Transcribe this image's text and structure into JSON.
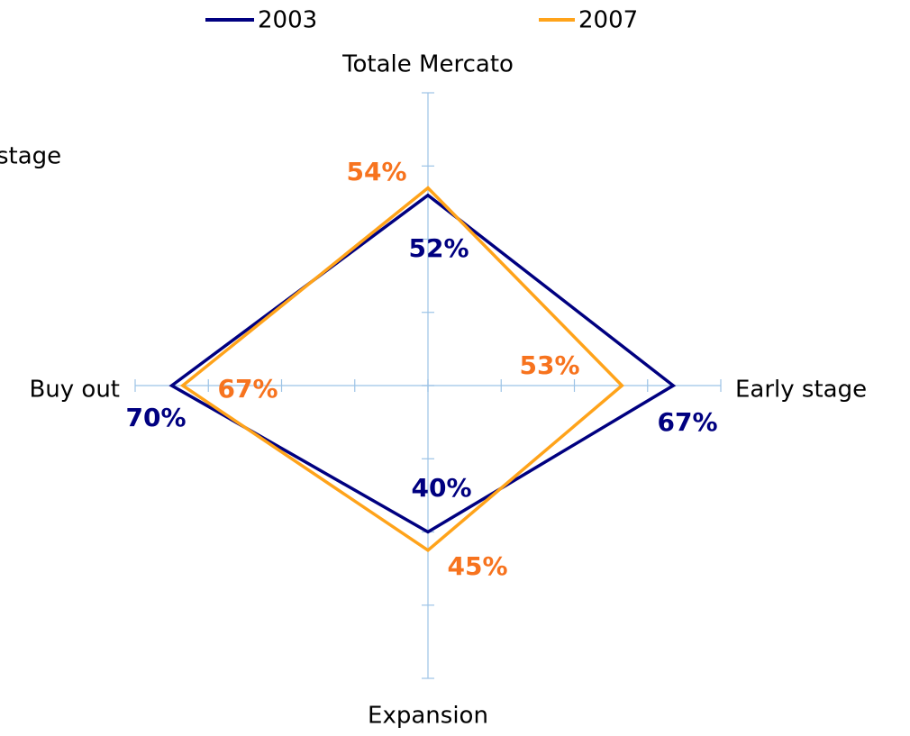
{
  "chart_data": {
    "type": "radar",
    "annotation": "stage",
    "categories": [
      "Totale Mercato",
      "Early stage",
      "Expansion",
      "Buy out"
    ],
    "rlim": [
      0,
      80
    ],
    "rticks": [
      0,
      20,
      40,
      60,
      80
    ],
    "legend": "top",
    "series": [
      {
        "name": "2003",
        "color": "#000080",
        "label_color": "#000080",
        "values": [
          52,
          67,
          40,
          70
        ],
        "value_labels": [
          "52%",
          "67%",
          "40%",
          "70%"
        ]
      },
      {
        "name": "2007",
        "color": "#ffa31a",
        "label_color": "#f7731e",
        "values": [
          54,
          53,
          45,
          67
        ],
        "value_labels": [
          "54%",
          "53%",
          "45%",
          "67%"
        ]
      }
    ]
  }
}
